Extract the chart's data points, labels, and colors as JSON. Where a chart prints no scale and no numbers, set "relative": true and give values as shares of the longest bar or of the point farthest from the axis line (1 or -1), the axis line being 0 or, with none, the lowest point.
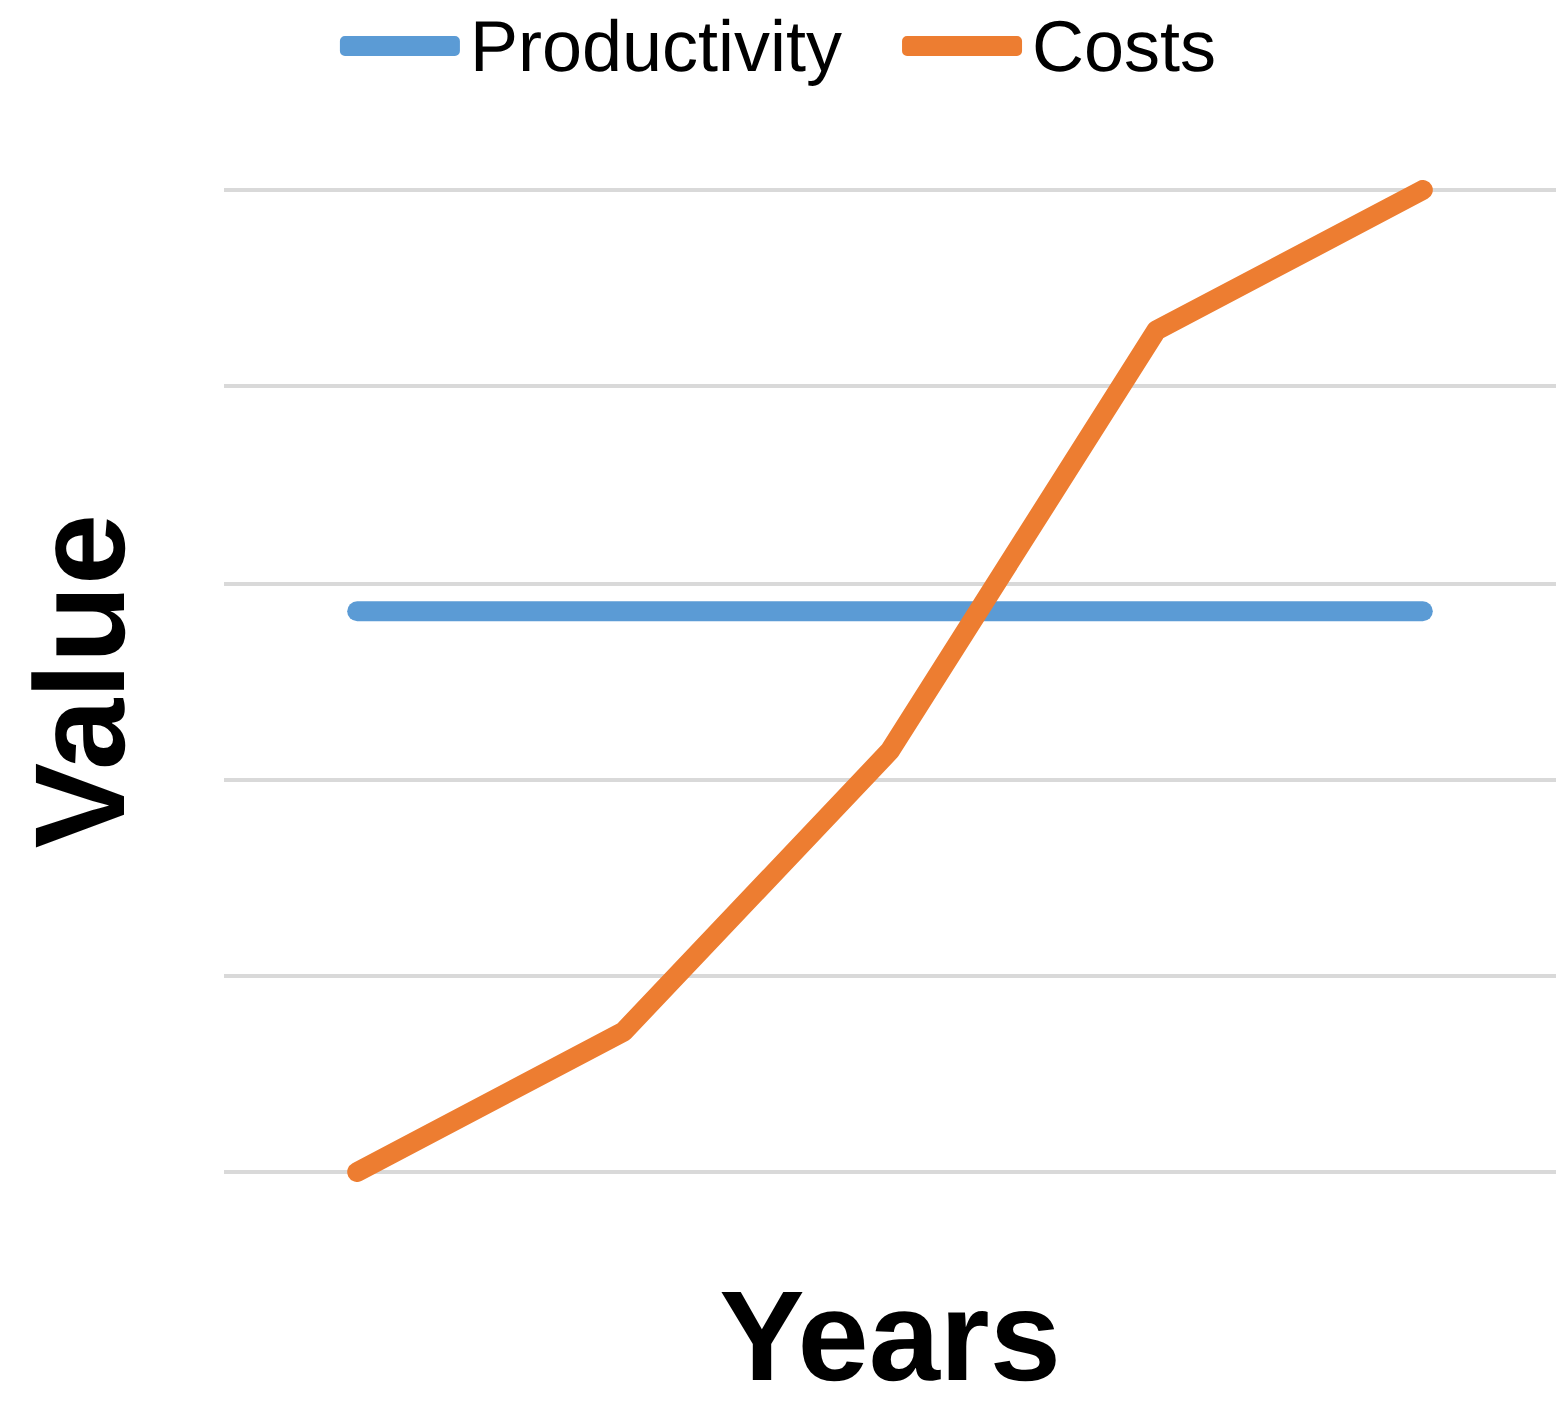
{
  "chart_data": {
    "type": "line",
    "xlabel": "Years",
    "ylabel": "Value",
    "categories": [
      null,
      null,
      null,
      null,
      null
    ],
    "relative": true,
    "grid": "y",
    "legend": "top",
    "series": [
      {
        "name": "Productivity",
        "color": "#5b9bd5",
        "values": [
          0.571,
          0.571,
          0.571,
          0.571,
          0.571
        ]
      },
      {
        "name": "Costs",
        "color": "#ed7d31",
        "values": [
          0,
          0.143,
          0.429,
          0.857,
          1
        ]
      }
    ]
  }
}
